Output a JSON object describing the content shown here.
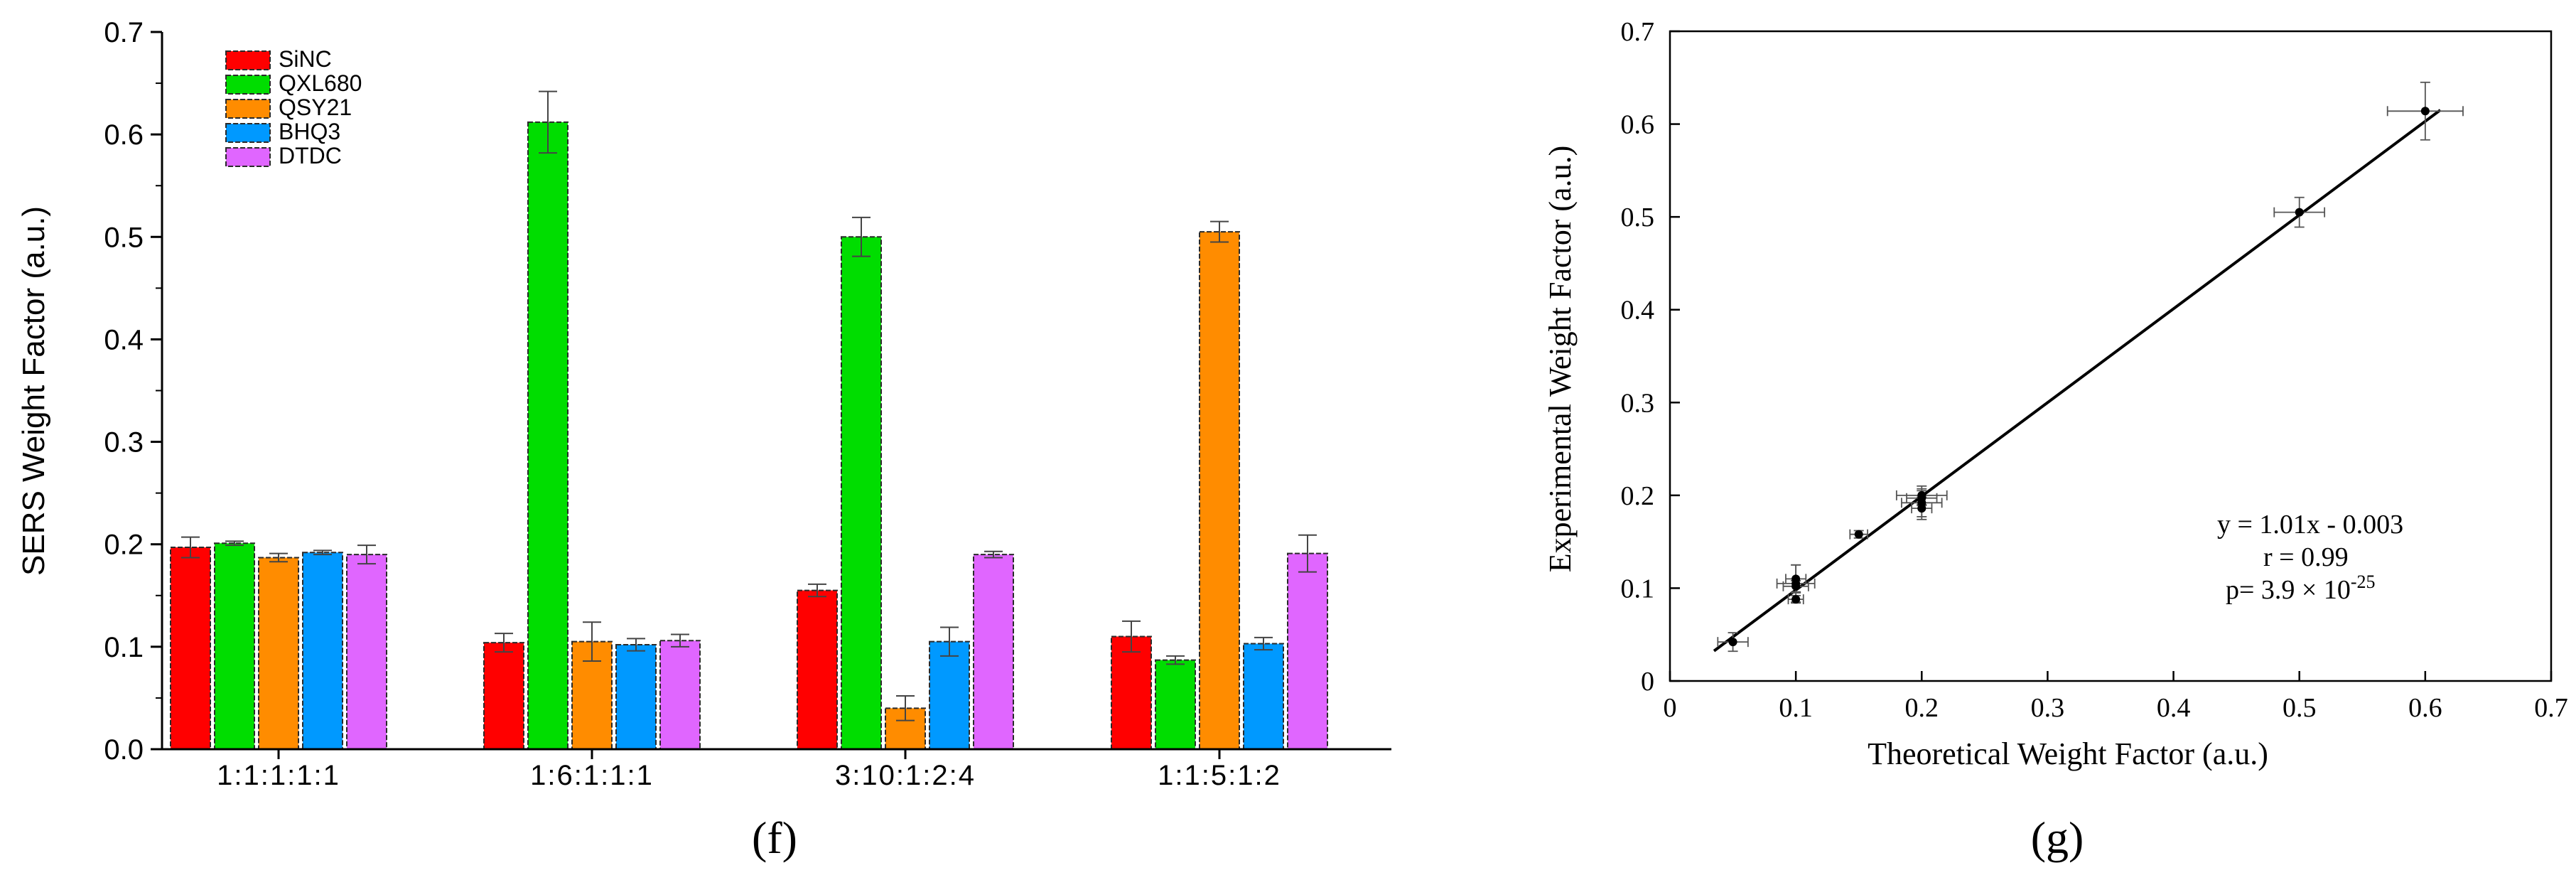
{
  "panel_labels": {
    "left": "(f)",
    "right": "(g)"
  },
  "chart_data": [
    {
      "type": "bar",
      "ylabel": "SERS Weight Factor (a.u.)",
      "xlabel": "",
      "ylim": [
        0,
        0.7
      ],
      "yticks": [
        "0.0",
        "0.1",
        "0.2",
        "0.3",
        "0.4",
        "0.5",
        "0.6",
        "0.7"
      ],
      "categories": [
        "1:1:1:1:1",
        "1:6:1:1:1",
        "3:10:1:2:4",
        "1:1:5:1:2"
      ],
      "legend_position": "top-left",
      "grid": false,
      "series": [
        {
          "name": "SiNC",
          "color": "#ff0000",
          "values": [
            0.197,
            0.104,
            0.155,
            0.11
          ],
          "errors": [
            0.01,
            0.009,
            0.006,
            0.015
          ]
        },
        {
          "name": "QXL680",
          "color": "#00dd00",
          "values": [
            0.201,
            0.612,
            0.5,
            0.087
          ],
          "errors": [
            0.002,
            0.03,
            0.019,
            0.004
          ]
        },
        {
          "name": "QSY21",
          "color": "#ff8c00",
          "values": [
            0.187,
            0.105,
            0.04,
            0.505
          ],
          "errors": [
            0.004,
            0.019,
            0.012,
            0.01
          ]
        },
        {
          "name": "BHQ3",
          "color": "#0099ff",
          "values": [
            0.192,
            0.102,
            0.105,
            0.103
          ],
          "errors": [
            0.002,
            0.006,
            0.014,
            0.006
          ]
        },
        {
          "name": "DTDC",
          "color": "#e066ff",
          "values": [
            0.19,
            0.106,
            0.19,
            0.191
          ],
          "errors": [
            0.009,
            0.006,
            0.003,
            0.018
          ]
        }
      ]
    },
    {
      "type": "scatter",
      "xlabel": "Theoretical Weight Factor (a.u.)",
      "ylabel": "Experimental Weight Factor (a.u.)",
      "xlim": [
        0,
        0.7
      ],
      "ylim": [
        0,
        0.7
      ],
      "xticks": [
        "0",
        "0.1",
        "0.2",
        "0.3",
        "0.4",
        "0.5",
        "0.6",
        "0.7"
      ],
      "yticks": [
        "0",
        "0.1",
        "0.2",
        "0.3",
        "0.4",
        "0.5",
        "0.6",
        "0.7"
      ],
      "grid": false,
      "points": [
        {
          "x": 0.05,
          "y": 0.042,
          "xerr": 0.012,
          "yerr": 0.01
        },
        {
          "x": 0.1,
          "y": 0.105,
          "xerr": 0.015,
          "yerr": 0.02
        },
        {
          "x": 0.1,
          "y": 0.102,
          "xerr": 0.01,
          "yerr": 0.006
        },
        {
          "x": 0.1,
          "y": 0.11,
          "xerr": 0.008,
          "yerr": 0.015
        },
        {
          "x": 0.1,
          "y": 0.088,
          "xerr": 0.006,
          "yerr": 0.004
        },
        {
          "x": 0.15,
          "y": 0.158,
          "xerr": 0.007,
          "yerr": 0.004
        },
        {
          "x": 0.2,
          "y": 0.192,
          "xerr": 0.016,
          "yerr": 0.015
        },
        {
          "x": 0.2,
          "y": 0.2,
          "xerr": 0.02,
          "yerr": 0.01
        },
        {
          "x": 0.2,
          "y": 0.197,
          "xerr": 0.012,
          "yerr": 0.008
        },
        {
          "x": 0.2,
          "y": 0.186,
          "xerr": 0.008,
          "yerr": 0.012
        },
        {
          "x": 0.5,
          "y": 0.505,
          "xerr": 0.02,
          "yerr": 0.016
        },
        {
          "x": 0.6,
          "y": 0.614,
          "xerr": 0.03,
          "yerr": 0.031
        }
      ],
      "fit_line": {
        "slope": 1.01,
        "intercept": -0.003,
        "x_range": [
          0.035,
          0.612
        ]
      },
      "annotations": {
        "equation": "y = 1.01x - 0.003",
        "r": "r = 0.99",
        "p_prefix": "p= 3.9 × 10",
        "p_exponent": "-25"
      }
    }
  ]
}
